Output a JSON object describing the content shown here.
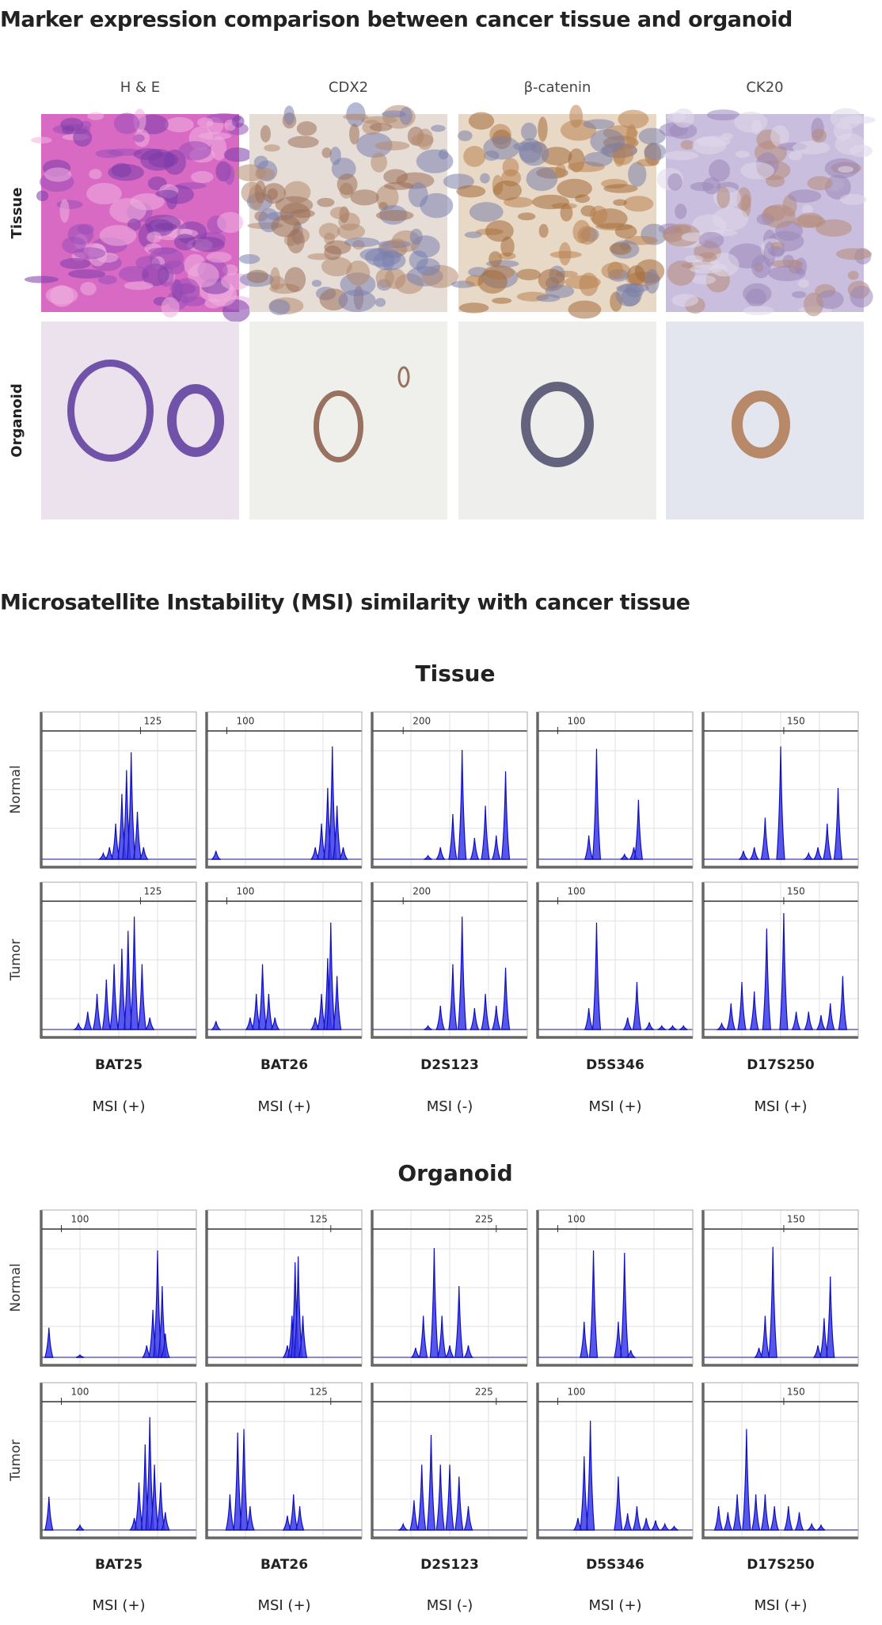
{
  "figure_a": {
    "title": "Marker expression comparison between cancer tissue and organoid",
    "columns": [
      "H & E",
      "CDX2",
      "β-catenin",
      "CK20"
    ],
    "rows": [
      "Tissue",
      "Organoid"
    ]
  },
  "figure_b": {
    "title": "Microsatellite Instability (MSI) similarity with cancer tissue",
    "groups": [
      {
        "title": "Tissue",
        "rows": [
          "Normal",
          "Tumor"
        ],
        "size_labels": [
          125,
          100,
          200,
          100,
          150
        ],
        "markers": [
          "BAT25",
          "BAT26",
          "D2S123",
          "D5S346",
          "D17S250"
        ],
        "msi": [
          "MSI (+)",
          "MSI (+)",
          "MSI (-)",
          "MSI (+)",
          "MSI (+)"
        ]
      },
      {
        "title": "Organoid",
        "rows": [
          "Normal",
          "Tumor"
        ],
        "size_labels": [
          100,
          125,
          225,
          100,
          150
        ],
        "markers": [
          "BAT25",
          "BAT26",
          "D2S123",
          "D5S346",
          "D17S250"
        ],
        "msi": [
          "MSI (+)",
          "MSI (+)",
          "MSI (-)",
          "MSI (+)",
          "MSI (+)"
        ]
      }
    ]
  }
}
